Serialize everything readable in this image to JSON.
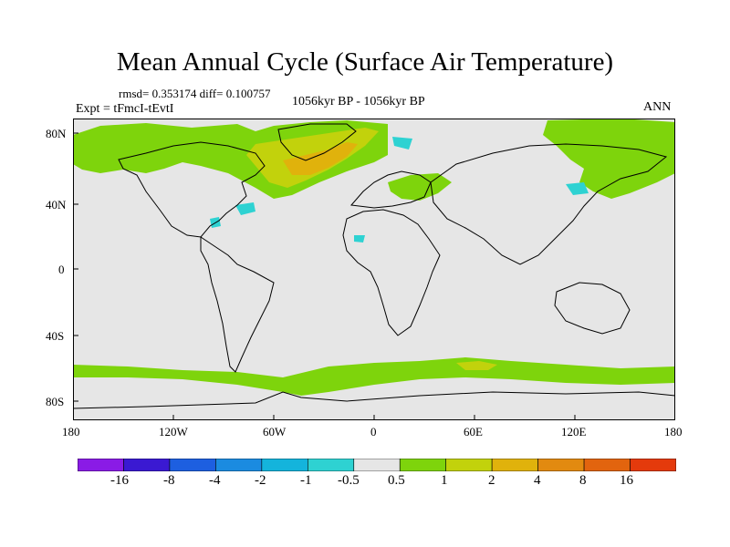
{
  "title": "Mean Annual Cycle (Surface Air Temperature)",
  "stats": "rmsd= 0.353174 diff= 0.100757",
  "experiment": "Expt = tFmcI-tEvtI",
  "period": "1056kyr BP - 1056kyr BP",
  "season": "ANN",
  "lat_labels": [
    "80N",
    "40N",
    "0",
    "40S",
    "80S"
  ],
  "lon_labels": [
    "180",
    "120W",
    "60W",
    "0",
    "60E",
    "120E",
    "180"
  ],
  "colorbar": {
    "labels": [
      "-16",
      "-8",
      "-4",
      "-2",
      "-1",
      "-0.5",
      "0.5",
      "1",
      "2",
      "4",
      "8",
      "16"
    ],
    "colors": [
      "#8a1be6",
      "#3a19d2",
      "#1d5fe0",
      "#1b8be0",
      "#14b4dc",
      "#2ed2d2",
      "#e6e6e6",
      "#7ed40c",
      "#c2d20c",
      "#e0b20c",
      "#e28a10",
      "#e2640e",
      "#e43a0c"
    ]
  },
  "colors": {
    "background": "#e6e6e6",
    "warm_1": "#7ed40c",
    "warm_2": "#c2d20c",
    "warm_4": "#e0b20c",
    "cool_1": "#2ed2d2",
    "coast": "#000000"
  }
}
